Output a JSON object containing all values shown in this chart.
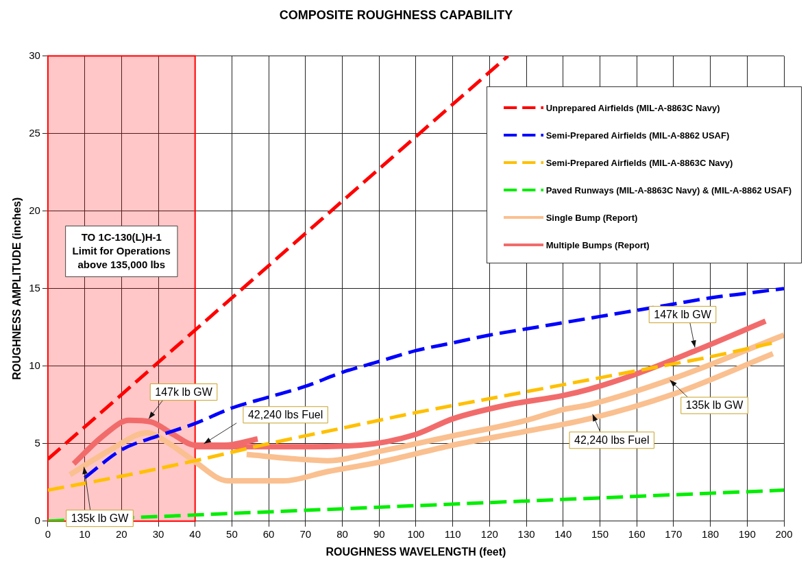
{
  "chart_data": {
    "type": "line",
    "title": "COMPOSITE ROUGHNESS CAPABILITY",
    "xlabel": "ROUGHNESS WAVELENGTH (feet)",
    "ylabel": "ROUGHNESS AMPLITUDE (inches)",
    "xlim": [
      0,
      200
    ],
    "xticks": [
      0,
      10,
      20,
      30,
      40,
      50,
      60,
      70,
      80,
      90,
      100,
      110,
      120,
      130,
      140,
      150,
      160,
      170,
      180,
      190,
      200
    ],
    "ylim": [
      0,
      30
    ],
    "yticks": [
      0,
      5,
      10,
      15,
      20,
      25,
      30
    ],
    "grid": true,
    "legend": "top right",
    "marker": "none",
    "series": [
      {
        "name": "Unprepared Airfields (MIL-A-8863C  Navy)",
        "color": "#ff0000",
        "line_style": "dashed",
        "x": [
          0,
          125
        ],
        "values": [
          4,
          30
        ]
      },
      {
        "name": "Semi-Prepared Airfields (MIL-A-8862  USAF)",
        "color": "#0000ff",
        "line_style": "dashed",
        "x": [
          10,
          20,
          30,
          40,
          50,
          60,
          70,
          80,
          90,
          100,
          110,
          120,
          130,
          140,
          150,
          160,
          170,
          180,
          190,
          200
        ],
        "values": [
          2.8,
          4.6,
          5.5,
          6.3,
          7.3,
          8.0,
          8.7,
          9.6,
          10.3,
          11.0,
          11.5,
          12.0,
          12.4,
          12.8,
          13.2,
          13.6,
          14.0,
          14.4,
          14.7,
          15
        ]
      },
      {
        "name": "Semi-Prepared Airfields (MIL-A-8863C  Navy)",
        "color": "#ffc000",
        "line_style": "dashed",
        "x": [
          0,
          20,
          40,
          60,
          80,
          100,
          120,
          140,
          160,
          180,
          197
        ],
        "values": [
          2,
          2.9,
          3.9,
          5.0,
          6.0,
          7.0,
          7.9,
          8.8,
          9.7,
          10.6,
          11.5
        ]
      },
      {
        "name": "Paved Runways (MIL-A-8863C  Navy) & (MIL-A-8862  USAF)",
        "color": "#00ee00",
        "line_style": "dashed",
        "x": [
          0,
          50,
          100,
          150,
          200
        ],
        "values": [
          0,
          0.5,
          1.0,
          1.5,
          2.0
        ]
      },
      {
        "name": "Single Bump (Report)",
        "color": "#fac090",
        "line_style": "solid",
        "x": [
          6,
          17,
          27,
          33,
          39,
          49,
          64,
          76,
          90,
          110,
          130,
          147,
          170,
          197
        ],
        "values": [
          3.0,
          4.6,
          5.7,
          5.0,
          4.0,
          2.6,
          2.6,
          3.2,
          3.8,
          4.9,
          5.8,
          6.6,
          8.2,
          10.8
        ]
      },
      {
        "color": "#fac090",
        "line_style": "solid",
        "x": [
          54,
          68,
          76,
          90,
          110,
          130,
          140,
          147,
          170,
          200
        ],
        "values": [
          4.3,
          4.0,
          3.9,
          4.5,
          5.5,
          6.5,
          7.2,
          7.5,
          9.2,
          12.0
        ]
      },
      {
        "name": "Multiple Bumps (Report)",
        "color": "#f26b6b",
        "line_style": "solid",
        "x": [
          7,
          15,
          22,
          28,
          34,
          40,
          48,
          57
        ],
        "values": [
          3.7,
          5.5,
          6.5,
          6.4,
          5.6,
          4.9,
          4.9,
          5.3
        ]
      },
      {
        "color": "#f26b6b",
        "line_style": "solid",
        "x": [
          40,
          55,
          68,
          85,
          100,
          110,
          125,
          140,
          147,
          160,
          176,
          195
        ],
        "values": [
          4.8,
          4.8,
          4.8,
          4.9,
          5.6,
          6.6,
          7.5,
          8.1,
          8.5,
          9.5,
          11.0,
          12.9
        ]
      }
    ],
    "bands": [
      {
        "axis": "x",
        "from": 0,
        "to": 40,
        "color": "#ff0000",
        "label": "TO 1C-130(L)H-1\nLimit for Operations\nabove 135,000 lbs"
      }
    ],
    "annotations": [
      {
        "text": "147k lb GW",
        "x": 27.4,
        "y": 6.6
      },
      {
        "text": "42,240 lbs Fuel",
        "x": 42.4,
        "y": 5.0
      },
      {
        "text": "135k lb GW",
        "x": 9.8,
        "y": 3.5
      },
      {
        "text": "147k lb GW",
        "x": 175.8,
        "y": 11.2
      },
      {
        "text": "135k lb GW",
        "x": 169,
        "y": 9.1
      },
      {
        "text": "42,240 lbs Fuel",
        "x": 148,
        "y": 6.9
      }
    ]
  }
}
